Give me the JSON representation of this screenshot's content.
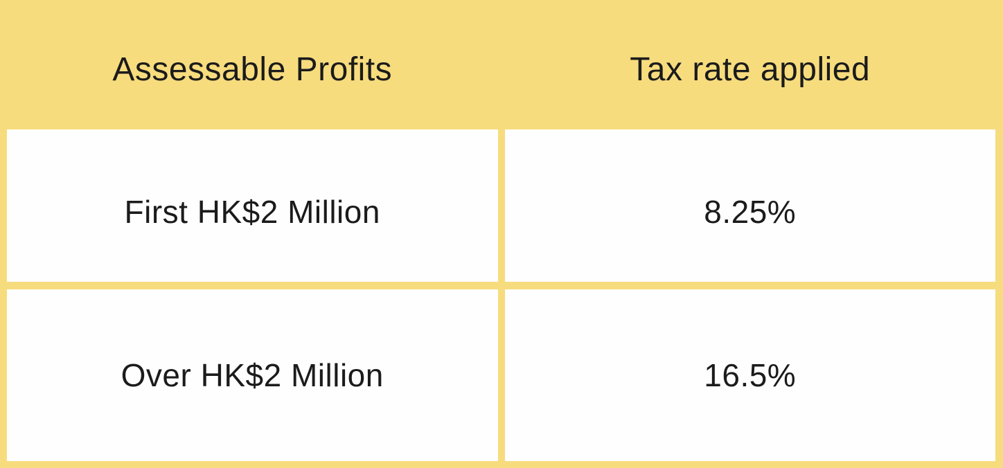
{
  "theme": {
    "frame_yellow": "#F7DC7E",
    "cell_white": "#FEFEFE",
    "text_color": "#1B1B1B"
  },
  "table": {
    "headers": [
      {
        "label": "Assessable Profits"
      },
      {
        "label": "Tax rate applied"
      }
    ],
    "rows": [
      {
        "profits": "First HK$2 Million",
        "rate": "8.25%"
      },
      {
        "profits": "Over HK$2 Million",
        "rate": "16.5%"
      }
    ]
  },
  "chart_data": {
    "type": "table",
    "columns": [
      "Assessable Profits",
      "Tax rate applied"
    ],
    "rows": [
      [
        "First HK$2 Million",
        "8.25%"
      ],
      [
        "Over HK$2 Million",
        "16.5%"
      ]
    ],
    "title": "",
    "notes": "Two-tier profits tax rate table: 8.25% on first HK$2 million of assessable profits, 16.5% on assessable profits over HK$2 million."
  }
}
